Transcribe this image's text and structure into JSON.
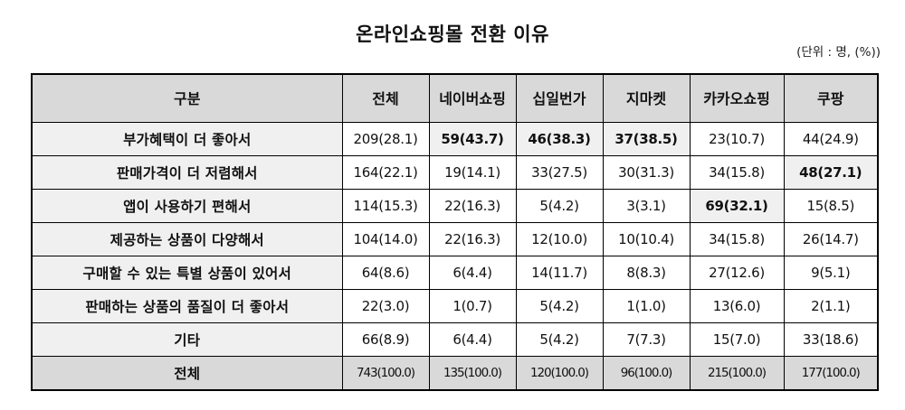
{
  "title": "온라인쇼핑몰 전환 이유",
  "unit": "(단위 : 명, (%))",
  "chart_data": {
    "type": "table",
    "columns": [
      "구분",
      "전체",
      "네이버쇼핑",
      "십일번가",
      "지마켓",
      "카카오쇼핑",
      "쿠팡"
    ],
    "rows": [
      {
        "label": "부가혜택이 더 좋아서",
        "cells": [
          "209(28.1)",
          "59(43.7)",
          "46(38.3)",
          "37(38.5)",
          "23(10.7)",
          "44(24.9)"
        ],
        "bold": [
          false,
          true,
          true,
          true,
          false,
          false
        ]
      },
      {
        "label": "판매가격이 더 저렴해서",
        "cells": [
          "164(22.1)",
          "19(14.1)",
          "33(27.5)",
          "30(31.3)",
          "34(15.8)",
          "48(27.1)"
        ],
        "bold": [
          false,
          false,
          false,
          false,
          false,
          true
        ]
      },
      {
        "label": "앱이 사용하기 편해서",
        "cells": [
          "114(15.3)",
          "22(16.3)",
          "5(4.2)",
          "3(3.1)",
          "69(32.1)",
          "15(8.5)"
        ],
        "bold": [
          false,
          false,
          false,
          false,
          true,
          false
        ]
      },
      {
        "label": "제공하는 상품이 다양해서",
        "cells": [
          "104(14.0)",
          "22(16.3)",
          "12(10.0)",
          "10(10.4)",
          "34(15.8)",
          "26(14.7)"
        ],
        "bold": [
          false,
          false,
          false,
          false,
          false,
          false
        ]
      },
      {
        "label": "구매할 수 있는 특별 상품이 있어서",
        "cells": [
          "64(8.6)",
          "6(4.4)",
          "14(11.7)",
          "8(8.3)",
          "27(12.6)",
          "9(5.1)"
        ],
        "bold": [
          false,
          false,
          false,
          false,
          false,
          false
        ]
      },
      {
        "label": "판매하는 상품의 품질이 더 좋아서",
        "cells": [
          "22(3.0)",
          "1(0.7)",
          "5(4.2)",
          "1(1.0)",
          "13(6.0)",
          "2(1.1)"
        ],
        "bold": [
          false,
          false,
          false,
          false,
          false,
          false
        ]
      },
      {
        "label": "기타",
        "cells": [
          "66(8.9)",
          "6(4.4)",
          "5(4.2)",
          "7(7.3)",
          "15(7.0)",
          "33(18.6)"
        ],
        "bold": [
          false,
          false,
          false,
          false,
          false,
          false
        ]
      },
      {
        "label": "전체",
        "cells": [
          "743(100.0)",
          "135(100.0)",
          "120(100.0)",
          "96(100.0)",
          "215(100.0)",
          "177(100.0)"
        ],
        "bold": [
          false,
          false,
          false,
          false,
          false,
          false
        ],
        "total": true
      }
    ]
  }
}
